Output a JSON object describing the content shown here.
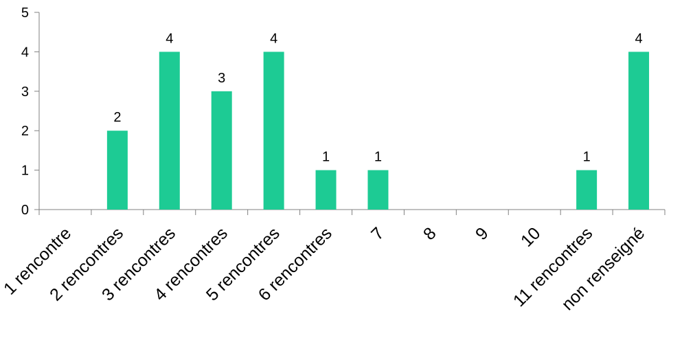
{
  "chart_data": {
    "type": "bar",
    "categories": [
      "1 rencontre",
      "2 rencontres",
      "3 rencontres",
      "4 rencontres",
      "5 rencontres",
      "6 rencontres",
      "7",
      "8",
      "9",
      "10",
      "11 rencontres",
      "non renseigné"
    ],
    "values": [
      0,
      2,
      4,
      3,
      4,
      1,
      1,
      0,
      0,
      0,
      1,
      4
    ],
    "data_labels": [
      "",
      "2",
      "4",
      "3",
      "4",
      "1",
      "1",
      "",
      "",
      "",
      "1",
      "4"
    ],
    "yticks": [
      "0",
      "1",
      "2",
      "3",
      "4",
      "5"
    ],
    "ylim": [
      0,
      5
    ],
    "grid": false,
    "legend": "none",
    "bar_color": "#1dcb94",
    "axis_color": "#808080"
  }
}
